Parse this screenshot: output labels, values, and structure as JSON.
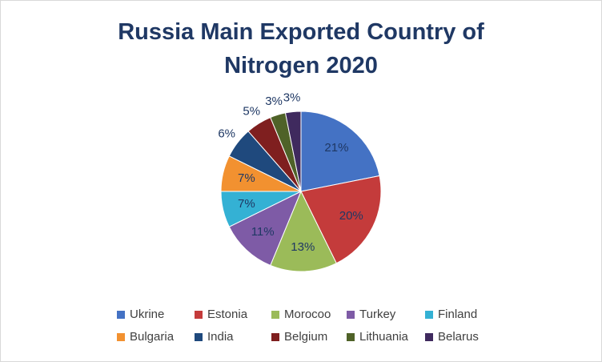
{
  "chart_data": {
    "type": "pie",
    "title": "Russia Main Exported Country of Nitrogen 2020",
    "categories": [
      "Ukrine",
      "Estonia",
      "Morocoo",
      "Turkey",
      "Finland",
      "Bulgaria",
      "India",
      "Belgium",
      "Lithuania",
      "Belarus"
    ],
    "values": [
      21,
      20,
      13,
      11,
      7,
      7,
      6,
      5,
      3,
      3
    ],
    "value_labels": [
      "21%",
      "20%",
      "13%",
      "11%",
      "7%",
      "7%",
      "6%",
      "5%",
      "3%",
      "3%"
    ],
    "colors": [
      "#4472c4",
      "#c43b3b",
      "#9bbb59",
      "#7e5ba6",
      "#34b1d4",
      "#f29130",
      "#1f497d",
      "#7f1f1f",
      "#4f6228",
      "#3f2a5e"
    ],
    "legend": "bottom"
  }
}
